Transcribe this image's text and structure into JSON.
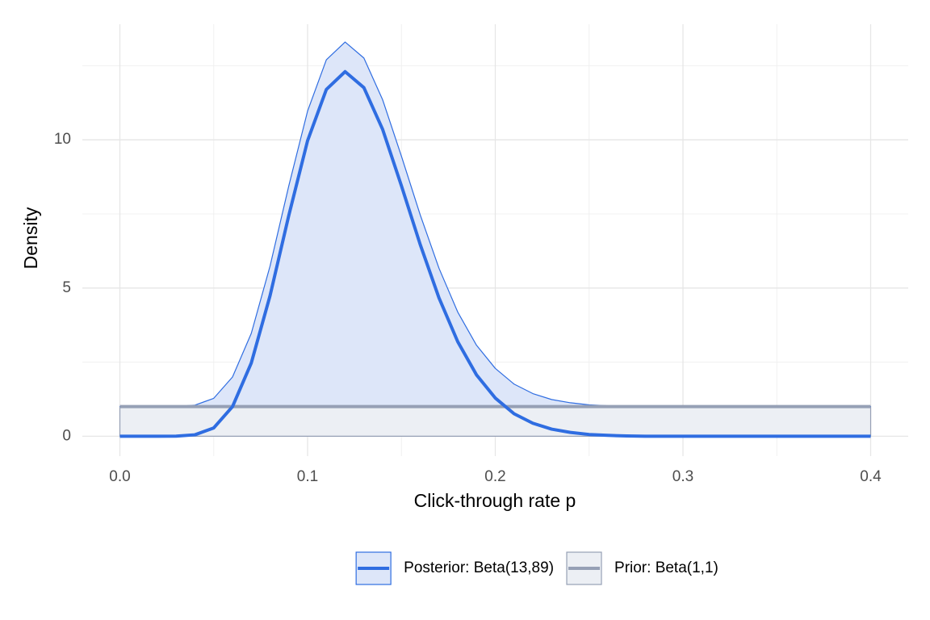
{
  "chart_data": {
    "type": "area",
    "stacked": true,
    "xlabel": "Click-through rate p",
    "ylabel": "Density",
    "x": [
      0,
      0.01,
      0.02,
      0.03,
      0.04,
      0.05,
      0.06,
      0.07,
      0.08,
      0.09,
      0.1,
      0.11,
      0.12,
      0.13,
      0.14,
      0.15,
      0.16,
      0.17,
      0.18,
      0.19,
      0.2,
      0.21,
      0.22,
      0.23,
      0.24,
      0.25,
      0.26,
      0.27,
      0.28,
      0.29,
      0.3,
      0.31,
      0.32,
      0.33,
      0.34,
      0.35,
      0.36,
      0.37,
      0.38,
      0.39,
      0.4
    ],
    "series": [
      {
        "name": "Posterior: Beta(13,89)",
        "color": "#2f6de1",
        "fill": "#dde6f9",
        "values": [
          0,
          0,
          0,
          0.004,
          0.05,
          0.28,
          1.0,
          2.47,
          4.74,
          7.45,
          9.97,
          11.7,
          12.3,
          11.76,
          10.35,
          8.45,
          6.47,
          4.67,
          3.19,
          2.07,
          1.29,
          0.76,
          0.44,
          0.24,
          0.13,
          0.06,
          0.03,
          0.01,
          0,
          0,
          0,
          0,
          0,
          0,
          0,
          0,
          0,
          0,
          0,
          0,
          0
        ]
      },
      {
        "name": "Prior: Beta(1,1)",
        "color": "#96a0b5",
        "fill": "#eceff4",
        "values": [
          1,
          1,
          1,
          1,
          1,
          1,
          1,
          1,
          1,
          1,
          1,
          1,
          1,
          1,
          1,
          1,
          1,
          1,
          1,
          1,
          1,
          1,
          1,
          1,
          1,
          1,
          1,
          1,
          1,
          1,
          1,
          1,
          1,
          1,
          1,
          1,
          1,
          1,
          1,
          1,
          1
        ]
      }
    ],
    "xlim": [
      -0.02,
      0.42
    ],
    "ylim": [
      -0.67,
      13.9
    ],
    "xticks": [
      {
        "value": 0,
        "label": "0.0"
      },
      0.1,
      0.2,
      0.3,
      0.4
    ],
    "yticks": [
      0,
      5,
      10
    ],
    "grid": true,
    "legend": "bottom"
  }
}
